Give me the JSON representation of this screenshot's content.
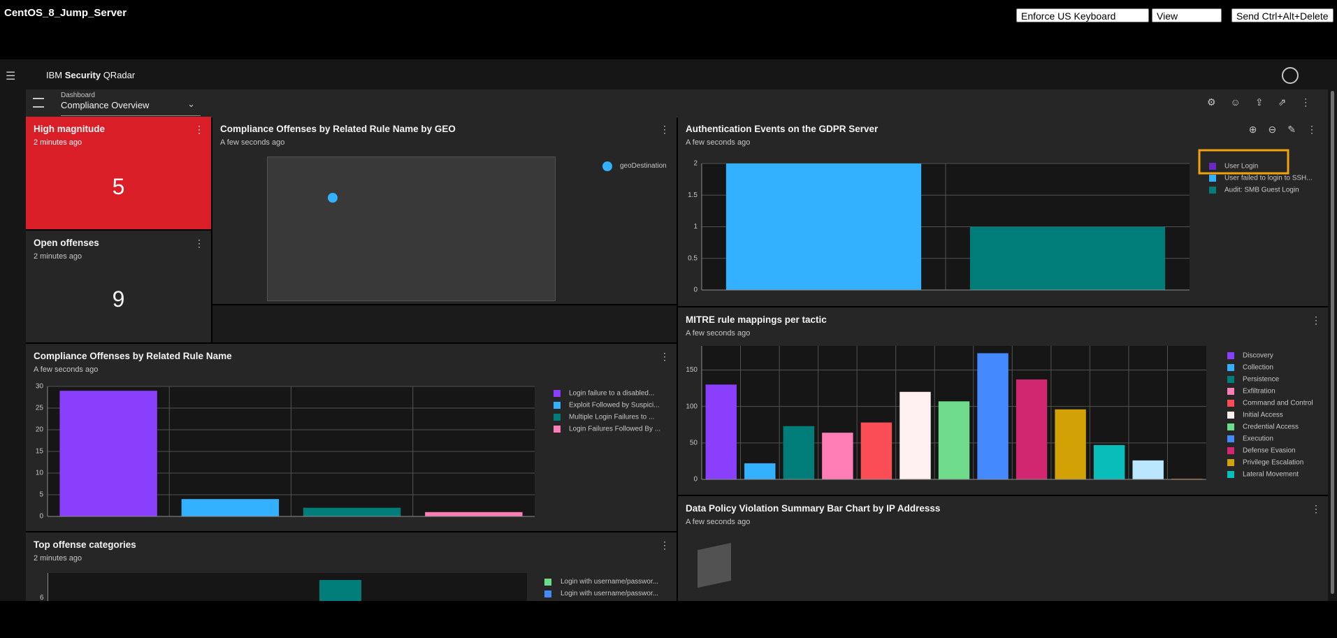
{
  "window": {
    "title": "CentOS_8_Jump_Server",
    "buttons": [
      "Enforce US Keyboard Layout",
      "View Fullscreen",
      "Send Ctrl+Alt+Delete"
    ]
  },
  "app": {
    "brand_prefix": "IBM",
    "brand_bold": "Security",
    "brand_suffix": "QRadar"
  },
  "dashboard": {
    "label": "Dashboard",
    "name": "Compliance Overview"
  },
  "widgets": {
    "high_magnitude": {
      "title": "High magnitude",
      "subtitle": "2 minutes ago",
      "value": 5
    },
    "open_offenses": {
      "title": "Open offenses",
      "subtitle": "2 minutes ago",
      "value": 9
    },
    "geo": {
      "title": "Compliance Offenses by Related Rule Name by GEO",
      "subtitle": "A few seconds ago",
      "legend": "geoDestination"
    },
    "auth": {
      "type": "bar",
      "title": "Authentication Events on the GDPR Server",
      "subtitle": "A few seconds ago",
      "ylim": [
        0,
        2
      ],
      "yticks": [
        0,
        0.5,
        1,
        1.5,
        2
      ],
      "series": [
        {
          "name": "User Login",
          "color": "#6929c4",
          "value": null
        },
        {
          "name": "User failed to login to SSH...",
          "color": "#33b1ff",
          "value": 2
        },
        {
          "name": "Audit: SMB Guest Login",
          "color": "#007d79",
          "value": 1
        }
      ]
    },
    "rule_name": {
      "type": "bar",
      "title": "Compliance Offenses by Related Rule Name",
      "subtitle": "A few seconds ago",
      "ylim": [
        0,
        30
      ],
      "yticks": [
        0,
        5,
        10,
        15,
        20,
        25,
        30
      ],
      "series": [
        {
          "name": "Login failure to a disabled...",
          "color": "#8a3ffc",
          "value": 29
        },
        {
          "name": "Exploit Followed by Suspici...",
          "color": "#33b1ff",
          "value": 4
        },
        {
          "name": "Multiple Login Failures to ...",
          "color": "#007d79",
          "value": 2
        },
        {
          "name": "Login Failures Followed By ...",
          "color": "#ff7eb6",
          "value": 1
        }
      ]
    },
    "mitre": {
      "type": "bar",
      "title": "MITRE rule mappings per tactic",
      "subtitle": "A few seconds ago",
      "ylim": [
        0,
        183
      ],
      "yticks": [
        0,
        50,
        100,
        150
      ],
      "series": [
        {
          "name": "Discovery",
          "color": "#8a3ffc",
          "value": 130
        },
        {
          "name": "Collection",
          "color": "#33b1ff",
          "value": 22
        },
        {
          "name": "Persistence",
          "color": "#007d79",
          "value": 73
        },
        {
          "name": "Exfiltration",
          "color": "#ff7eb6",
          "value": 64
        },
        {
          "name": "Command and Control",
          "color": "#fa4d56",
          "value": 78
        },
        {
          "name": "Initial Access",
          "color": "#fff1f1",
          "value": 120
        },
        {
          "name": "Credential Access",
          "color": "#6fdc8c",
          "value": 107
        },
        {
          "name": "Execution",
          "color": "#4589ff",
          "value": 173
        },
        {
          "name": "Defense Evasion",
          "color": "#d12771",
          "value": 137
        },
        {
          "name": "Privilege Escalation",
          "color": "#d2a106",
          "value": 96
        },
        {
          "name": "Lateral Movement",
          "color": "#08bdba",
          "value": 47
        },
        {
          "name": null,
          "color": "#bae6ff",
          "value": 26
        },
        {
          "name": null,
          "color": "#ba4e00",
          "value": 1
        }
      ]
    },
    "data_policy": {
      "title": "Data Policy Violation Summary Bar Chart by IP Addresss",
      "subtitle": "A few seconds ago"
    },
    "top_offense": {
      "title": "Top offense categories",
      "subtitle": "2 minutes ago",
      "yticks": [
        6
      ],
      "legend": [
        {
          "name": "Login with username/passwor...",
          "color": "#6fdc8c"
        },
        {
          "name": "Login with username/passwor...",
          "color": "#4589ff"
        }
      ]
    }
  }
}
